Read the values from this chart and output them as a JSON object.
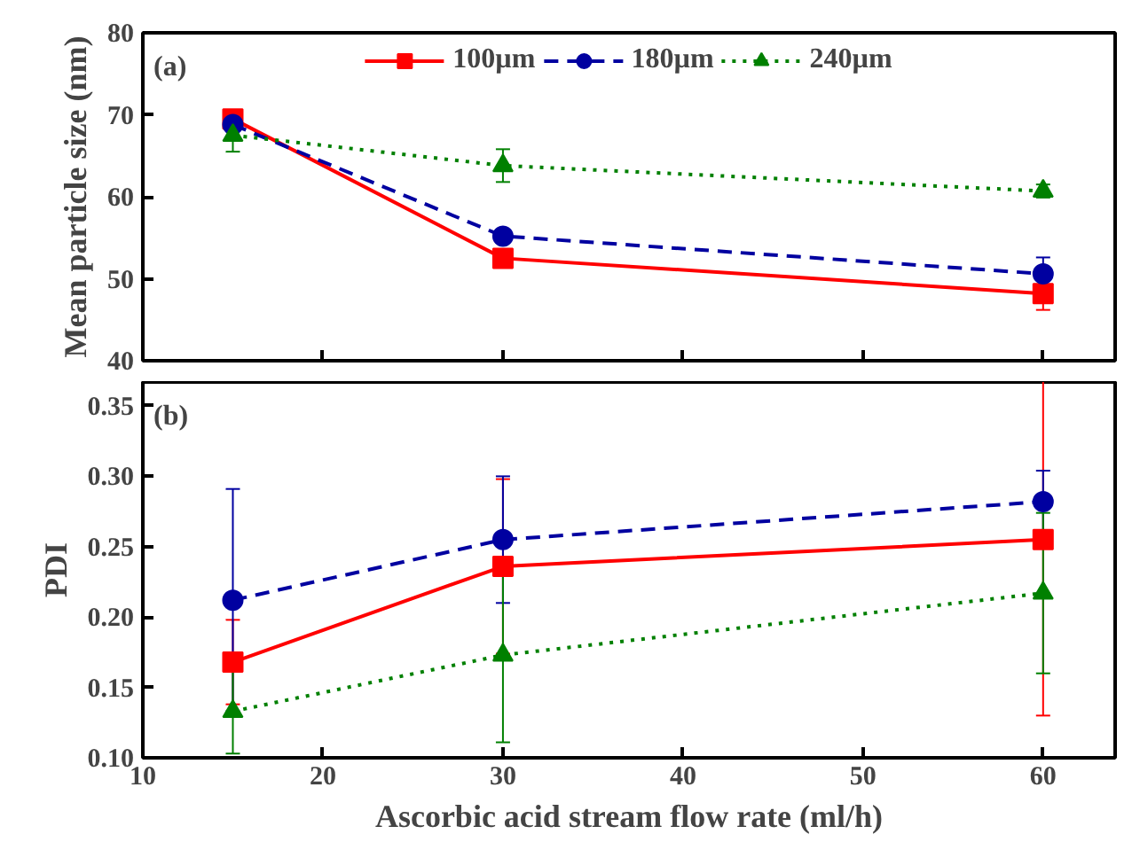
{
  "chart_data": [
    {
      "type": "line",
      "ylabel": "Mean particle size (nm)",
      "annotations": [
        "(a)"
      ],
      "x": [
        15,
        30,
        60
      ],
      "xlim": [
        10,
        64
      ],
      "xticks": [
        10,
        20,
        30,
        40,
        50,
        60
      ],
      "ylim": [
        40,
        80
      ],
      "yticks": [
        40,
        50,
        60,
        70,
        80
      ],
      "tick_labels": "y",
      "legend": "top",
      "grid": false,
      "series": [
        {
          "name": "100µm",
          "color": "#ff0000",
          "marker": "square",
          "line_style": "solid",
          "values": [
            69.5,
            52.5,
            48.2
          ],
          "errors": [
            0.5,
            0.6,
            2
          ]
        },
        {
          "name": "180µm",
          "color": "#0000a0",
          "marker": "circle",
          "line_style": "dashed",
          "values": [
            68.8,
            55.2,
            50.6
          ],
          "errors": [
            0.5,
            0.7,
            2
          ]
        },
        {
          "name": "240µm",
          "color": "#008000",
          "marker": "triangle",
          "line_style": "dotted",
          "values": [
            67.5,
            63.8,
            60.7
          ],
          "errors": [
            2,
            2,
            0.8
          ]
        }
      ]
    },
    {
      "type": "line",
      "xlabel": "Ascorbic acid stream flow rate (ml/h)",
      "ylabel": "PDI",
      "annotations": [
        "(b)"
      ],
      "x": [
        15,
        30,
        60
      ],
      "xlim": [
        10,
        64
      ],
      "xticks": [
        10,
        20,
        30,
        40,
        50,
        60
      ],
      "ylim": [
        0.1,
        0.367
      ],
      "yticks": [
        {
          "value": 0.1,
          "label": "0.10"
        },
        {
          "value": 0.15,
          "label": "0.15"
        },
        {
          "value": 0.2,
          "label": "0.20"
        },
        {
          "value": 0.25,
          "label": "0.25"
        },
        {
          "value": 0.3,
          "label": "0.30"
        },
        {
          "value": 0.35,
          "label": "0.35"
        }
      ],
      "grid": false,
      "series": [
        {
          "color": "#ff0000",
          "marker": "square",
          "line_style": "solid",
          "values": [
            0.168,
            0.236,
            0.255
          ],
          "errors": [
            0.03,
            0.062,
            0.125
          ]
        },
        {
          "color": "#0000a0",
          "marker": "circle",
          "line_style": "dashed",
          "values": [
            0.212,
            0.255,
            0.282
          ],
          "errors": [
            0.079,
            0.045,
            0.022
          ]
        },
        {
          "color": "#008000",
          "marker": "triangle",
          "line_style": "dotted",
          "values": [
            0.133,
            0.173,
            0.217
          ],
          "errors": [
            0.03,
            0.062,
            0.057
          ]
        }
      ]
    }
  ]
}
